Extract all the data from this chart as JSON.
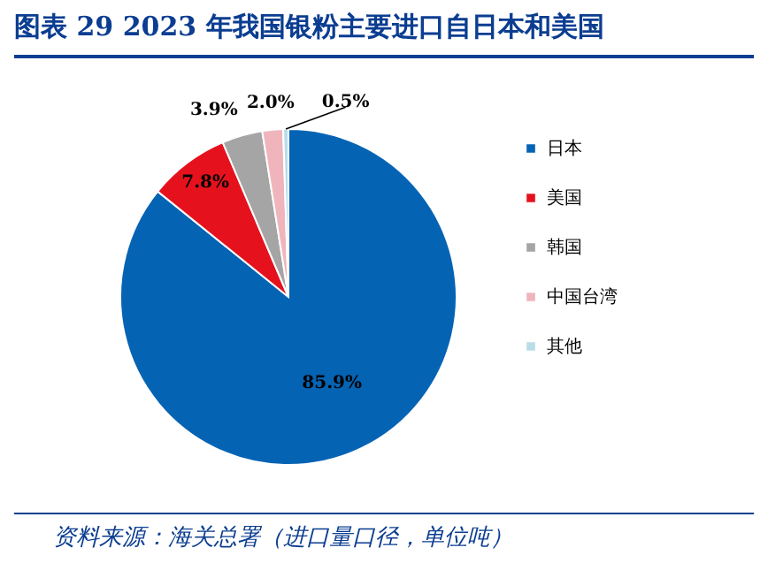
{
  "chart_data": {
    "type": "pie",
    "title": "图表 29   2023 年我国银粉主要进口自日本和美国",
    "categories": [
      "日本",
      "美国",
      "韩国",
      "中国台湾",
      "其他"
    ],
    "values": [
      85.9,
      7.8,
      3.9,
      2.0,
      0.5
    ],
    "colors": [
      "#0563b4",
      "#e5121d",
      "#a5a5a5",
      "#f0b5bc",
      "#b8dde8"
    ],
    "value_labels": [
      "85.9%",
      "7.8%",
      "3.9%",
      "2.0%",
      "0.5%"
    ],
    "legend": "right",
    "annotations": [
      "资料来源：海关总署（进口量口径，单位吨）"
    ]
  }
}
